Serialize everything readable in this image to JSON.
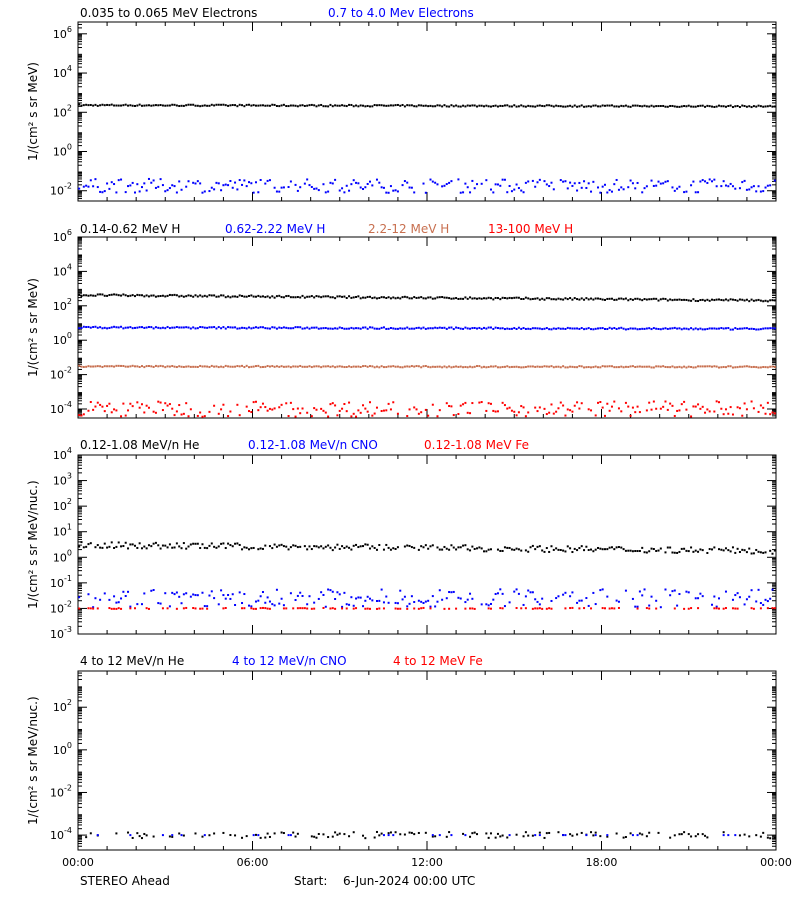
{
  "footer": {
    "spacecraft": "STEREO Ahead",
    "start_label": "Start:",
    "start_value": "6-Jun-2024 00:00 UTC"
  },
  "chart_data": [
    {
      "type": "scatter",
      "ylabel": "1/(cm² s sr MeV)",
      "yscale": "log",
      "ylim": [
        0.003,
        4000000
      ],
      "yticks": [
        {
          "v": 0.01,
          "m": "10",
          "e": "-2"
        },
        {
          "v": 1,
          "m": "10",
          "e": "0"
        },
        {
          "v": 100,
          "m": "10",
          "e": "2"
        },
        {
          "v": 10000,
          "m": "10",
          "e": "4"
        },
        {
          "v": 1000000,
          "m": "10",
          "e": "6"
        }
      ],
      "xlim": [
        0,
        24
      ],
      "series": [
        {
          "name": "0.035 to 0.065 MeV Electrons",
          "color": "#000000",
          "level": 230,
          "level_end": 200,
          "jitter": 0.04,
          "gaps": 0
        },
        {
          "name": "0.7 to 4.0 Mev Electrons",
          "color": "#0000ff",
          "level": 0.018,
          "level_end": 0.017,
          "jitter": 0.35,
          "gaps": 0.1
        }
      ]
    },
    {
      "type": "scatter",
      "ylabel": "1/(cm² s sr MeV)",
      "yscale": "log",
      "ylim": [
        3e-05,
        1000000
      ],
      "yticks": [
        {
          "v": 0.0001,
          "m": "10",
          "e": "-4"
        },
        {
          "v": 0.01,
          "m": "10",
          "e": "-2"
        },
        {
          "v": 1,
          "m": "10",
          "e": "0"
        },
        {
          "v": 100,
          "m": "10",
          "e": "2"
        },
        {
          "v": 10000,
          "m": "10",
          "e": "4"
        },
        {
          "v": 1000000,
          "m": "10",
          "e": "6"
        }
      ],
      "xlim": [
        0,
        24
      ],
      "series": [
        {
          "name": "0.14-0.62 MeV H",
          "color": "#000000",
          "level": 420,
          "level_end": 200,
          "jitter": 0.06,
          "gaps": 0
        },
        {
          "name": "0.62-2.22 MeV H",
          "color": "#0000ff",
          "level": 5.5,
          "level_end": 4.5,
          "jitter": 0.05,
          "gaps": 0
        },
        {
          "name": "2.2-12 MeV H",
          "color": "#c87050",
          "level": 0.03,
          "level_end": 0.028,
          "jitter": 0.04,
          "gaps": 0
        },
        {
          "name": "13-100 MeV H",
          "color": "#ff0000",
          "level": 0.0001,
          "level_end": 0.0001,
          "jitter": 0.45,
          "gaps": 0.15
        }
      ]
    },
    {
      "type": "scatter",
      "ylabel": "1/(cm² s sr MeV/nuc.)",
      "yscale": "log",
      "ylim": [
        0.001,
        10000
      ],
      "yticks": [
        {
          "v": 0.001,
          "m": "10",
          "e": "-3"
        },
        {
          "v": 0.01,
          "m": "10",
          "e": "-2"
        },
        {
          "v": 0.1,
          "m": "10",
          "e": "-1"
        },
        {
          "v": 1,
          "m": "10",
          "e": "0"
        },
        {
          "v": 10,
          "m": "10",
          "e": "1"
        },
        {
          "v": 100,
          "m": "10",
          "e": "2"
        },
        {
          "v": 1000,
          "m": "10",
          "e": "3"
        },
        {
          "v": 10000,
          "m": "10",
          "e": "4"
        }
      ],
      "xlim": [
        0,
        24
      ],
      "series": [
        {
          "name": "0.12-1.08 MeV/n He",
          "color": "#000000",
          "level": 3.0,
          "level_end": 1.8,
          "jitter": 0.12,
          "gaps": 0.05
        },
        {
          "name": "0.12-1.08 MeV/n CNO",
          "color": "#0000ff",
          "level": 0.025,
          "level_end": 0.025,
          "jitter": 0.35,
          "gaps": 0.3
        },
        {
          "name": "0.12-1.08 MeV Fe",
          "color": "#ff0000",
          "level": 0.01,
          "level_end": 0.01,
          "jitter": 0.02,
          "gaps": 0.55
        }
      ]
    },
    {
      "type": "scatter",
      "ylabel": "1/(cm² s sr MeV/nuc.)",
      "yscale": "log",
      "ylim": [
        2e-05,
        5000
      ],
      "yticks": [
        {
          "v": 0.0001,
          "m": "10",
          "e": "-4"
        },
        {
          "v": 0.01,
          "m": "10",
          "e": "-2"
        },
        {
          "v": 1,
          "m": "10",
          "e": "0"
        },
        {
          "v": 100,
          "m": "10",
          "e": "2"
        }
      ],
      "xlim": [
        0,
        24
      ],
      "xticks": [
        "00:00",
        "06:00",
        "12:00",
        "18:00",
        "00:00"
      ],
      "series": [
        {
          "name": "4 to 12 MeV/n He",
          "color": "#000000",
          "level": 0.0001,
          "level_end": 0.0001,
          "jitter": 0.15,
          "gaps": 0.55
        },
        {
          "name": "4 to 12 MeV/n CNO",
          "color": "#0000ff",
          "level": 0.0001,
          "level_end": 0.0001,
          "jitter": 0.0,
          "gaps": 0.9
        },
        {
          "name": "4 to 12 MeV Fe",
          "color": "#ff0000",
          "level": 0.0001,
          "level_end": 0.0001,
          "jitter": 0.0,
          "gaps": 1.0
        }
      ]
    }
  ]
}
